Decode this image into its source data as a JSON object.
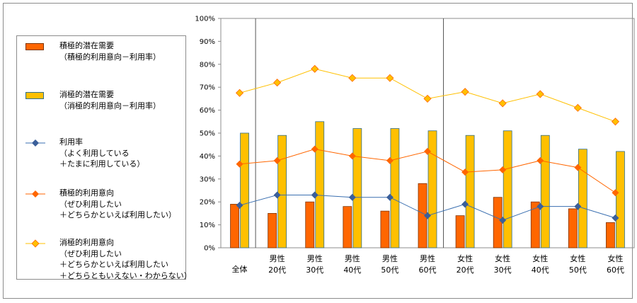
{
  "chart_data": {
    "type": "bar+line",
    "categories": [
      {
        "line1": "全体",
        "line2": ""
      },
      {
        "line1": "男性",
        "line2": "20代"
      },
      {
        "line1": "男性",
        "line2": "30代"
      },
      {
        "line1": "男性",
        "line2": "40代"
      },
      {
        "line1": "男性",
        "line2": "50代"
      },
      {
        "line1": "男性",
        "line2": "60代"
      },
      {
        "line1": "女性",
        "line2": "20代"
      },
      {
        "line1": "女性",
        "line2": "30代"
      },
      {
        "line1": "女性",
        "line2": "40代"
      },
      {
        "line1": "女性",
        "line2": "50代"
      },
      {
        "line1": "女性",
        "line2": "60代"
      }
    ],
    "yticks": [
      "0%",
      "10%",
      "20%",
      "30%",
      "40%",
      "50%",
      "60%",
      "70%",
      "80%",
      "90%",
      "100%"
    ],
    "ylim": [
      0,
      100
    ],
    "series": [
      {
        "key": "positive_latent",
        "kind": "bar",
        "name_lines": [
          "積極的潜在需要",
          "（積極的利用意向－利用率）"
        ],
        "color": "#ff6600",
        "stroke": "#7f3300",
        "values": [
          19,
          15,
          20,
          18,
          16,
          28,
          14,
          22,
          20,
          17,
          11
        ]
      },
      {
        "key": "passive_latent",
        "kind": "bar",
        "name_lines": [
          "消極的潜在需要",
          "（消極的利用意向－利用率）"
        ],
        "color": "#ffc000",
        "stroke": "#2f6f8f",
        "values": [
          50,
          49,
          55,
          52,
          52,
          51,
          49,
          51,
          49,
          43,
          42
        ]
      },
      {
        "key": "usage_rate",
        "kind": "line",
        "name_lines": [
          "利用率",
          "（よく利用している",
          "＋たまに利用している）"
        ],
        "color": "#3a6fb0",
        "marker_fill": "#3a5f9a",
        "values": [
          18.5,
          23,
          23,
          22,
          22,
          14,
          19,
          12,
          18,
          18,
          13
        ]
      },
      {
        "key": "positive_intent",
        "kind": "line",
        "name_lines": [
          "積極的利用意向",
          "（ぜひ利用したい",
          "＋どちらかといえば利用したい）"
        ],
        "color": "#ff6600",
        "marker_fill": "#ff6600",
        "values": [
          36.5,
          38,
          43,
          40,
          38,
          42,
          33,
          34,
          38,
          35,
          24
        ]
      },
      {
        "key": "passive_intent",
        "kind": "line",
        "name_lines": [
          "消極的利用意向",
          "（ぜひ利用したい",
          "＋どちらかといえば利用したい",
          "＋どちらともいえない・わからない）"
        ],
        "color": "#ffc000",
        "marker_fill": "#ffc000",
        "marker_stroke": "#ff6600",
        "values": [
          67.5,
          72,
          78,
          74,
          74,
          65,
          68,
          63,
          67,
          61,
          55
        ]
      }
    ]
  }
}
